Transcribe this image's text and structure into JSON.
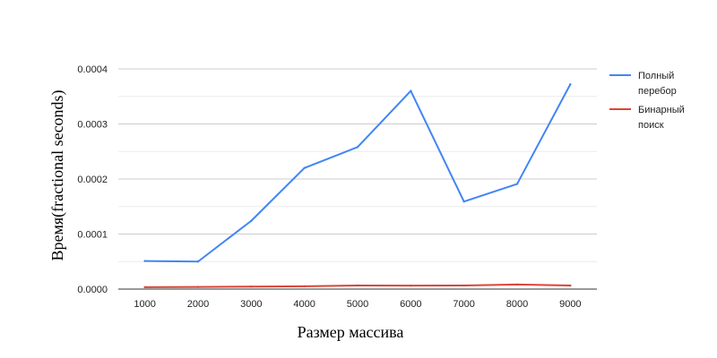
{
  "chart_data": {
    "type": "line",
    "title": "",
    "xlabel": "Размер массива",
    "ylabel": "Время(fractional seconds)",
    "x": [
      1000,
      2000,
      3000,
      4000,
      5000,
      6000,
      7000,
      8000,
      9000
    ],
    "ylim": [
      0,
      0.0004
    ],
    "yticks": [
      "0.0000",
      "0.0001",
      "0.0002",
      "0.0003",
      "0.0004"
    ],
    "grid": true,
    "legend_position": "right",
    "series": [
      {
        "name_lines": [
          "Полный",
          "перебор"
        ],
        "color": "#4285f4",
        "values": [
          5.1e-05,
          5e-05,
          0.000124,
          0.00022,
          0.000258,
          0.00036,
          0.000159,
          0.000191,
          0.000372
        ]
      },
      {
        "name_lines": [
          "Бинарный",
          "поиск"
        ],
        "color": "#db4437",
        "values": [
          3.5e-06,
          3.8e-06,
          4.5e-06,
          5e-06,
          6.5e-06,
          6.3e-06,
          6.6e-06,
          8.3e-06,
          6.5e-06
        ]
      }
    ]
  }
}
